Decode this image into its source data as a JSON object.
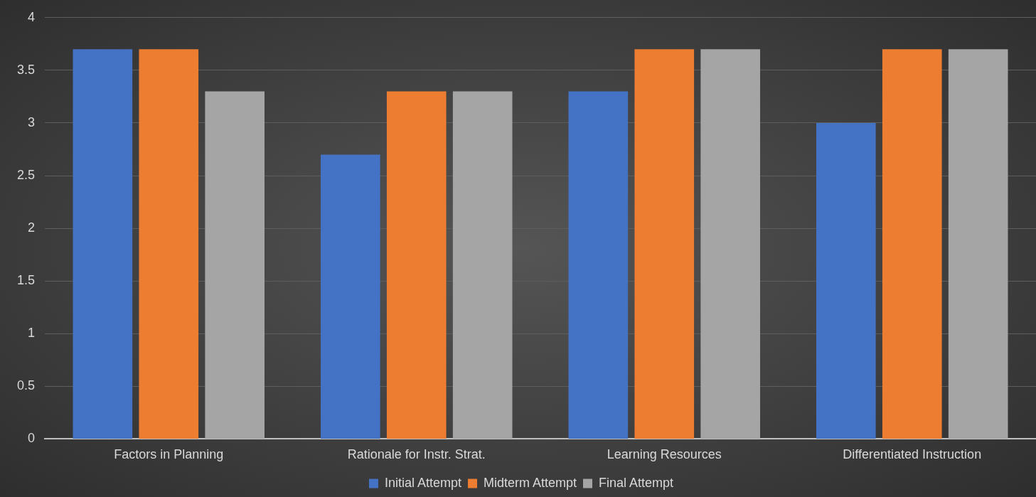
{
  "chart_data": {
    "type": "bar",
    "categories": [
      "Factors in Planning",
      "Rationale for Instr. Strat.",
      "Learning Resources",
      "Differentiated Instruction"
    ],
    "series": [
      {
        "name": "Initial Attempt",
        "color": "#4472c4",
        "values": [
          3.7,
          2.7,
          3.3,
          3.0
        ]
      },
      {
        "name": "Midterm Attempt",
        "color": "#ed7d31",
        "values": [
          3.7,
          3.3,
          3.7,
          3.7
        ]
      },
      {
        "name": "Final Attempt",
        "color": "#a5a5a5",
        "values": [
          3.3,
          3.3,
          3.7,
          3.7
        ]
      }
    ],
    "ylim": [
      0,
      4
    ],
    "yticks": [
      0,
      0.5,
      1,
      1.5,
      2,
      2.5,
      3,
      3.5,
      4
    ],
    "grid": "y",
    "legend": "bottom"
  }
}
